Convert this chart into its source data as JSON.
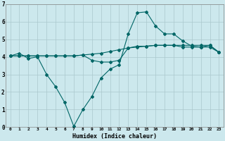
{
  "xlabel": "Humidex (Indice chaleur)",
  "background_color": "#cce8ed",
  "grid_color": "#aac8cc",
  "line_color": "#006666",
  "xlim": [
    -0.5,
    23.5
  ],
  "ylim": [
    0,
    7
  ],
  "xticks": [
    0,
    1,
    2,
    3,
    4,
    5,
    6,
    7,
    8,
    9,
    10,
    11,
    12,
    13,
    14,
    15,
    16,
    17,
    18,
    19,
    20,
    21,
    22,
    23
  ],
  "yticks": [
    0,
    1,
    2,
    3,
    4,
    5,
    6,
    7
  ],
  "series": [
    [
      4.05,
      4.2,
      3.9,
      4.0,
      3.0,
      2.3,
      1.4,
      0.05,
      1.0,
      1.75,
      2.8,
      3.3,
      3.55,
      5.3,
      6.5,
      6.55,
      5.75,
      5.3,
      5.3,
      4.9,
      4.6,
      4.55,
      4.55,
      4.25
    ],
    [
      4.05,
      4.05,
      4.05,
      4.05,
      4.05,
      4.05,
      4.05,
      4.05,
      4.1,
      4.15,
      4.2,
      4.3,
      4.4,
      4.5,
      4.55,
      4.6,
      4.65,
      4.65,
      4.65,
      4.65,
      4.65,
      4.65,
      4.65,
      4.25
    ],
    [
      4.05,
      4.05,
      4.05,
      4.05,
      4.05,
      4.05,
      4.05,
      4.05,
      4.1,
      3.8,
      3.7,
      3.7,
      3.8,
      4.5,
      4.6,
      4.6,
      4.65,
      4.65,
      4.65,
      4.55,
      4.55,
      4.55,
      4.65,
      4.25
    ]
  ]
}
